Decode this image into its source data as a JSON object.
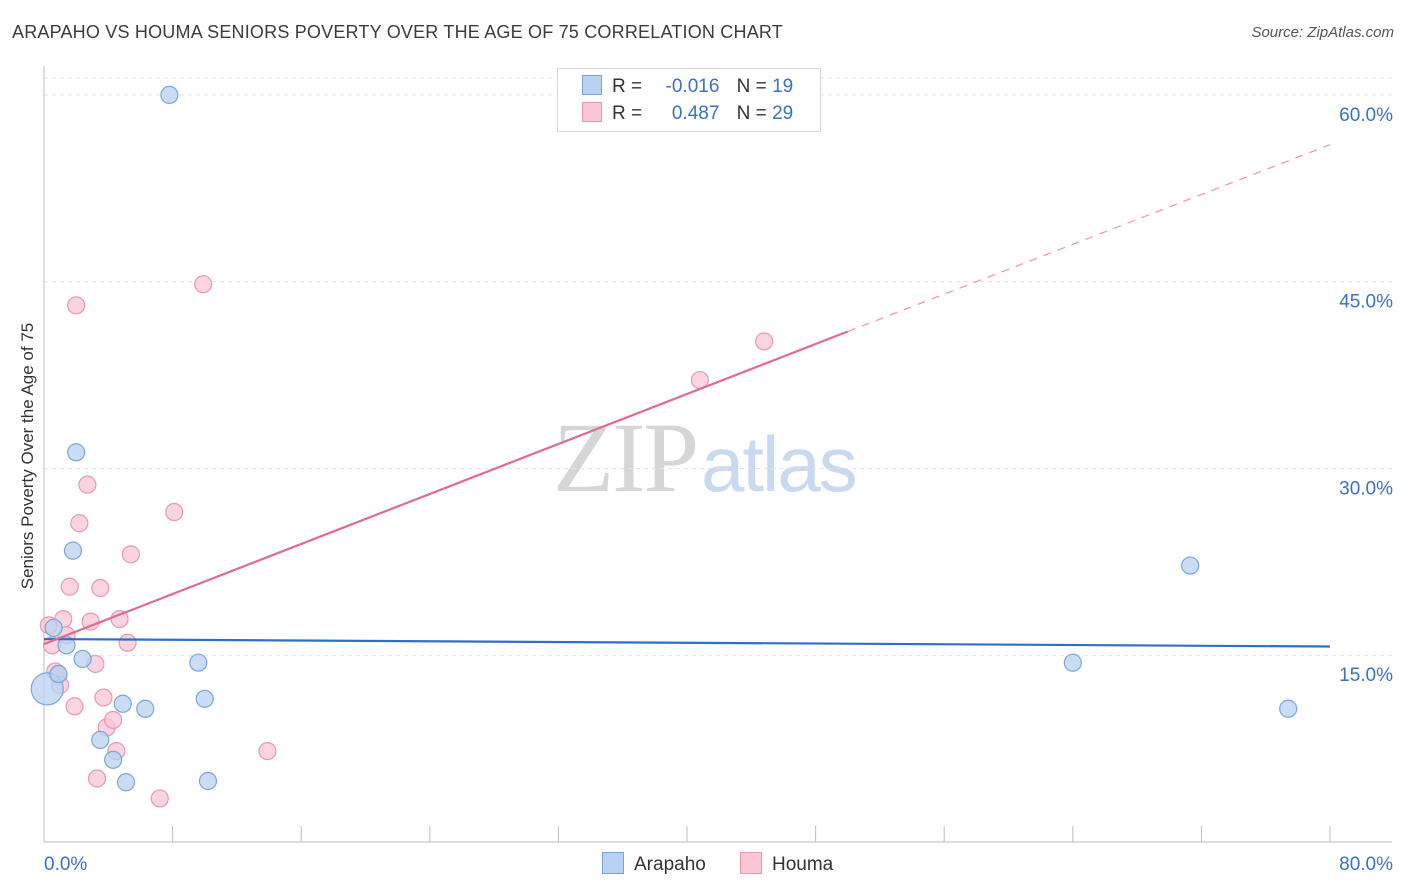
{
  "title": "ARAPAHO VS HOUMA SENIORS POVERTY OVER THE AGE OF 75 CORRELATION CHART",
  "source": "Source: ZipAtlas.com",
  "watermark": {
    "part1": "ZIP",
    "part2": "atlas"
  },
  "legend": {
    "rows": [
      {
        "r_label": "R =",
        "r_value": "-0.016",
        "n_label": "N =",
        "n_value": "19"
      },
      {
        "r_label": "R =",
        "r_value": "0.487",
        "n_label": "N =",
        "n_value": "29"
      }
    ]
  },
  "bottom_legend": {
    "series1": "Arapaho",
    "series2": "Houma"
  },
  "colors": {
    "arapaho_fill": "#b9d2f2",
    "arapaho_stroke": "#7aa6de",
    "arapaho_line": "#2f6fc8",
    "houma_fill": "#f8c6d5",
    "houma_stroke": "#ec97b3",
    "houma_line": "#e06a92",
    "tick_label": "#3a72c4",
    "grid": "#e3e3e3"
  },
  "chart_data": {
    "type": "scatter",
    "title": "ARAPAHO VS HOUMA SENIORS POVERTY OVER THE AGE OF 75 CORRELATION CHART",
    "xlabel": "",
    "ylabel": "Seniors Poverty Over the Age of 75",
    "xlim": [
      0,
      80
    ],
    "ylim": [
      0,
      62
    ],
    "x_tick_labels": [
      {
        "value": 0,
        "label": "0.0%"
      },
      {
        "value": 80,
        "label": "80.0%"
      }
    ],
    "y_tick_labels": [
      {
        "value": 15,
        "label": "15.0%"
      },
      {
        "value": 30,
        "label": "30.0%"
      },
      {
        "value": 45,
        "label": "45.0%"
      },
      {
        "value": 60,
        "label": "60.0%"
      }
    ],
    "x_minor_ticks": [
      0,
      8,
      16,
      24,
      32,
      40,
      48,
      56,
      64,
      72,
      80
    ],
    "series": [
      {
        "name": "Arapaho",
        "r": -0.016,
        "n": 19,
        "points": [
          {
            "x": 0.2,
            "y": 12.3,
            "big": true
          },
          {
            "x": 0.6,
            "y": 17.2
          },
          {
            "x": 0.9,
            "y": 13.5
          },
          {
            "x": 1.4,
            "y": 15.8
          },
          {
            "x": 1.8,
            "y": 23.4
          },
          {
            "x": 2.0,
            "y": 31.3
          },
          {
            "x": 2.4,
            "y": 14.7
          },
          {
            "x": 3.5,
            "y": 8.2
          },
          {
            "x": 4.3,
            "y": 6.6
          },
          {
            "x": 4.9,
            "y": 11.1
          },
          {
            "x": 5.1,
            "y": 4.8
          },
          {
            "x": 6.3,
            "y": 10.7
          },
          {
            "x": 7.8,
            "y": 60.0
          },
          {
            "x": 9.6,
            "y": 14.4
          },
          {
            "x": 10.0,
            "y": 11.5
          },
          {
            "x": 10.2,
            "y": 4.9
          },
          {
            "x": 64.0,
            "y": 14.4
          },
          {
            "x": 71.3,
            "y": 22.2
          },
          {
            "x": 77.4,
            "y": 10.7
          }
        ],
        "trend": {
          "x1": 0,
          "y1": 16.3,
          "x2": 80,
          "y2": 15.7
        }
      },
      {
        "name": "Houma",
        "r": 0.487,
        "n": 29,
        "points": [
          {
            "x": 0.3,
            "y": 17.4
          },
          {
            "x": 0.5,
            "y": 15.8
          },
          {
            "x": 0.7,
            "y": 13.7
          },
          {
            "x": 0.9,
            "y": 13.4
          },
          {
            "x": 1.0,
            "y": 12.6
          },
          {
            "x": 1.2,
            "y": 17.9
          },
          {
            "x": 1.4,
            "y": 16.6
          },
          {
            "x": 1.6,
            "y": 20.5
          },
          {
            "x": 1.9,
            "y": 10.9
          },
          {
            "x": 2.0,
            "y": 43.1
          },
          {
            "x": 2.2,
            "y": 25.6
          },
          {
            "x": 2.7,
            "y": 28.7
          },
          {
            "x": 2.9,
            "y": 17.7
          },
          {
            "x": 3.2,
            "y": 14.3
          },
          {
            "x": 3.3,
            "y": 5.1
          },
          {
            "x": 3.5,
            "y": 20.4
          },
          {
            "x": 3.7,
            "y": 11.6
          },
          {
            "x": 3.9,
            "y": 9.2
          },
          {
            "x": 4.3,
            "y": 9.8
          },
          {
            "x": 4.5,
            "y": 7.3
          },
          {
            "x": 4.7,
            "y": 17.9
          },
          {
            "x": 5.2,
            "y": 16.0
          },
          {
            "x": 5.4,
            "y": 23.1
          },
          {
            "x": 7.2,
            "y": 3.5
          },
          {
            "x": 8.1,
            "y": 26.5
          },
          {
            "x": 9.9,
            "y": 44.8
          },
          {
            "x": 13.9,
            "y": 7.3
          },
          {
            "x": 40.8,
            "y": 37.1
          },
          {
            "x": 44.8,
            "y": 40.2
          }
        ],
        "trend": {
          "x1": 0,
          "y1": 15.9,
          "x2": 50,
          "y2": 41.0,
          "dash_x2": 80,
          "dash_y2": 56.0
        }
      }
    ]
  }
}
